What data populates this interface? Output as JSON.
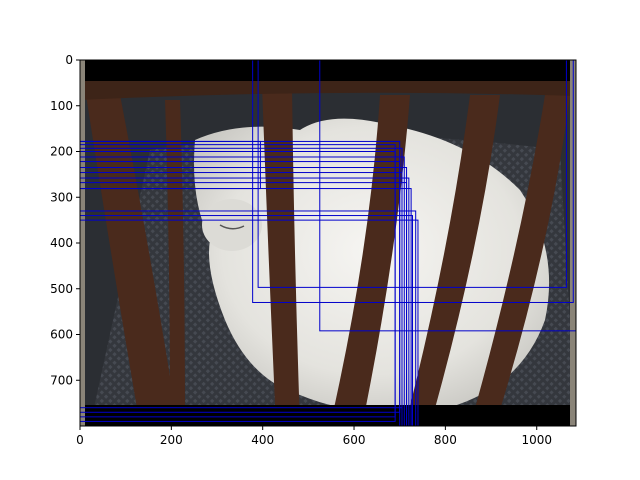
{
  "chart_data": {
    "type": "image_with_bounding_boxes",
    "title": "",
    "xlabel": "",
    "ylabel": "",
    "xlim": [
      0,
      1086
    ],
    "ylim": [
      800,
      0
    ],
    "x_ticks": [
      0,
      200,
      400,
      600,
      800,
      1000
    ],
    "y_ticks": [
      0,
      100,
      200,
      300,
      400,
      500,
      600,
      700
    ],
    "grid": false,
    "box_color": "#0000cc",
    "image_description_colors": {
      "letterbox": "#000000",
      "background": "#2b2e33",
      "chair_wood": "#4a2a1c",
      "cat_fur": "#e9e8e4",
      "cushion": "#3a3d44"
    },
    "boxes": [
      {
        "x0": 525,
        "y0": 0,
        "x1": 1086,
        "y1": 592
      },
      {
        "x0": 378,
        "y0": 0,
        "x1": 1080,
        "y1": 530
      },
      {
        "x0": 390,
        "y0": 0,
        "x1": 1065,
        "y1": 497
      },
      {
        "x0": 0,
        "y0": 178,
        "x1": 700,
        "y1": 800
      },
      {
        "x0": 0,
        "y0": 185,
        "x1": 690,
        "y1": 790
      },
      {
        "x0": 0,
        "y0": 193,
        "x1": 705,
        "y1": 800
      },
      {
        "x0": 0,
        "y0": 200,
        "x1": 690,
        "y1": 780
      },
      {
        "x0": 0,
        "y0": 212,
        "x1": 710,
        "y1": 800
      },
      {
        "x0": 0,
        "y0": 222,
        "x1": 700,
        "y1": 770
      },
      {
        "x0": 0,
        "y0": 235,
        "x1": 715,
        "y1": 800
      },
      {
        "x0": 0,
        "y0": 246,
        "x1": 705,
        "y1": 760
      },
      {
        "x0": 0,
        "y0": 258,
        "x1": 720,
        "y1": 800
      },
      {
        "x0": 0,
        "y0": 268,
        "x1": 715,
        "y1": 800
      },
      {
        "x0": 0,
        "y0": 281,
        "x1": 725,
        "y1": 800
      },
      {
        "x0": 0,
        "y0": 330,
        "x1": 735,
        "y1": 800
      },
      {
        "x0": 0,
        "y0": 340,
        "x1": 728,
        "y1": 800
      },
      {
        "x0": 0,
        "y0": 350,
        "x1": 740,
        "y1": 800
      },
      {
        "x0": 0,
        "y0": 178,
        "x1": 395,
        "y1": 281
      }
    ]
  }
}
